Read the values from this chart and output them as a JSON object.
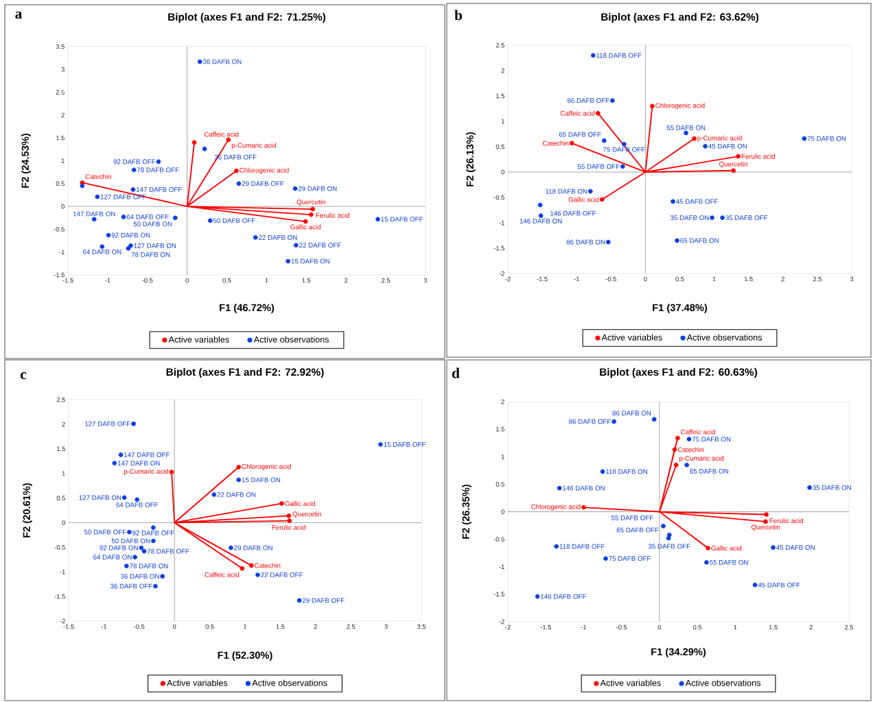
{
  "chart_data": [
    {
      "type": "scatter",
      "title": "Biplot (axes F1 and F2: 71.25%)",
      "xlabel": "F1 (46.72%)",
      "ylabel": "F2 (24.53%)",
      "xlim": [
        -1.5,
        3
      ],
      "ylim": [
        -1.5,
        3.5
      ],
      "xticks": [
        -1.5,
        -1,
        -0.5,
        0,
        0.5,
        1,
        1.5,
        2,
        2.5,
        3
      ],
      "yticks": [
        -1.5,
        -1,
        -0.5,
        0,
        0.5,
        1,
        1.5,
        2,
        2.5,
        3,
        3.5
      ],
      "legend": "bottom",
      "marker": "circle",
      "series": [
        {
          "type": "line",
          "marker": "none",
          "color": "#ff0000",
          "x": [
            0,
            -1.32,
            null,
            0,
            0.09,
            null,
            0,
            0.52,
            null,
            0,
            0.62,
            null,
            0,
            1.58,
            null,
            0,
            1.56,
            null,
            0,
            1.49
          ],
          "values": [
            0,
            0.52,
            null,
            0,
            1.4,
            null,
            0,
            1.46,
            null,
            0,
            0.78,
            null,
            0,
            -0.06,
            null,
            0,
            -0.18,
            null,
            0,
            -0.33
          ]
        },
        {
          "name": "Active variables",
          "color": "#ff0000",
          "x": [
            -1.32,
            0.09,
            0.52,
            0.62,
            1.58,
            1.56,
            1.49
          ],
          "values": [
            0.52,
            1.4,
            1.46,
            0.78,
            -0.06,
            -0.18,
            -0.33
          ]
        },
        {
          "name": "Active observations",
          "color": "#0b3fe0",
          "x": [
            0.16,
            0.22,
            -0.36,
            -0.67,
            -0.68,
            -1.32,
            -1.13,
            -0.8,
            -0.15,
            -1.17,
            -0.99,
            -1.07,
            -0.74,
            -0.71,
            0.29,
            0.65,
            1.36,
            0.86,
            1.37,
            1.27,
            2.4
          ],
          "values": [
            3.17,
            1.26,
            0.98,
            0.8,
            0.37,
            0.45,
            0.21,
            -0.23,
            -0.25,
            -0.28,
            -0.63,
            -0.88,
            -0.92,
            -0.86,
            -0.31,
            0.5,
            0.39,
            -0.68,
            -0.85,
            -1.2,
            -0.28
          ]
        }
      ],
      "annotations": [
        "a",
        {
          "text": "Catechin",
          "x": -1.32,
          "y": 0.52
        },
        {
          "text": "Caffeic acid",
          "x": 0.09,
          "y": 1.4
        },
        {
          "text": "p-Cumaric acid",
          "x": 0.52,
          "y": 1.46
        },
        {
          "text": "Chlorogenic acid",
          "x": 0.62,
          "y": 0.78
        },
        {
          "text": "Ferulic acid",
          "x": 1.58,
          "y": -0.06
        },
        {
          "text": "Quercetin",
          "x": 1.56,
          "y": -0.18
        },
        {
          "text": "Gallic acid",
          "x": 1.49,
          "y": -0.33
        },
        {
          "text": "36 DAFB ON",
          "x": 0.16,
          "y": 3.17
        },
        {
          "text": "36 DAFB OFF",
          "x": 0.22,
          "y": 1.26
        },
        {
          "text": "92 DAFB OFF",
          "x": -0.36,
          "y": 0.98
        },
        {
          "text": "78 DAFB OFF",
          "x": -0.67,
          "y": 0.8
        },
        {
          "text": "147 DAFB OFF",
          "x": -0.68,
          "y": 0.37
        },
        {
          "text": "127 DAFB OFF",
          "x": -1.13,
          "y": 0.21
        },
        {
          "text": "64 DAFB OFF",
          "x": -0.8,
          "y": -0.23
        },
        {
          "text": "50 DAFB ON",
          "x": -0.15,
          "y": -0.25
        },
        {
          "text": "147 DAFB ON",
          "x": -1.17,
          "y": -0.28
        },
        {
          "text": "92 DAFB ON",
          "x": -0.99,
          "y": -0.63
        },
        {
          "text": "64 DAFB ON",
          "x": -1.07,
          "y": -0.88
        },
        {
          "text": "78 DAFB ON",
          "x": -0.74,
          "y": -0.92
        },
        {
          "text": "127 DAFB ON",
          "x": -0.71,
          "y": -0.86
        },
        {
          "text": "50 DAFB OFF",
          "x": 0.29,
          "y": -0.31
        },
        {
          "text": "29 DAFB OFF",
          "x": 0.65,
          "y": 0.5
        },
        {
          "text": "29 DAFB ON",
          "x": 1.36,
          "y": 0.39
        },
        {
          "text": "22 DAFB ON",
          "x": 0.86,
          "y": -0.68
        },
        {
          "text": "22 DAFB OFF",
          "x": 1.37,
          "y": -0.85
        },
        {
          "text": "15 DAFB ON",
          "x": 1.27,
          "y": -1.2
        },
        {
          "text": "15 DAFB OFF",
          "x": 2.4,
          "y": -0.28
        }
      ]
    },
    {
      "type": "scatter",
      "title": "Biplot (axes F1 and F2: 63.62%)",
      "xlabel": "F1 (37.48%)",
      "ylabel": "F2 (26.13%)",
      "xlim": [
        -2,
        3
      ],
      "ylim": [
        -2,
        2.5
      ],
      "xticks": [
        -2,
        -1.5,
        -1,
        -0.5,
        0,
        0.5,
        1,
        1.5,
        2,
        2.5,
        3
      ],
      "yticks": [
        -2,
        -1.5,
        -1,
        -0.5,
        0,
        0.5,
        1,
        1.5,
        2,
        2.5
      ],
      "legend": "bottom",
      "marker": "circle",
      "series": [
        {
          "type": "line",
          "marker": "none",
          "color": "#ff0000",
          "x": [
            0,
            0.1,
            null,
            0,
            -0.69,
            null,
            0,
            -1.07,
            null,
            0,
            0.71,
            null,
            0,
            1.35,
            null,
            0,
            1.28,
            null,
            0,
            -0.63
          ],
          "values": [
            0,
            1.3,
            null,
            0,
            1.16,
            null,
            0,
            0.57,
            null,
            0,
            0.66,
            null,
            0,
            0.31,
            null,
            0,
            0.03,
            null,
            0,
            -0.54
          ]
        },
        {
          "name": "Active variables",
          "color": "#ff0000",
          "x": [
            0.1,
            -0.69,
            -1.07,
            0.71,
            1.35,
            1.28,
            -0.63
          ],
          "values": [
            1.3,
            1.16,
            0.57,
            0.66,
            0.31,
            0.03,
            -0.54
          ]
        },
        {
          "name": "Active observations",
          "color": "#0b3fe0",
          "x": [
            -0.76,
            -0.48,
            -0.6,
            -0.31,
            -0.33,
            0.59,
            0.87,
            2.31,
            -0.8,
            -1.53,
            -1.52,
            -0.54,
            0.4,
            0.97,
            1.12,
            0.46
          ],
          "values": [
            2.3,
            1.41,
            0.62,
            0.55,
            0.11,
            0.77,
            0.51,
            0.66,
            -0.38,
            -0.65,
            -0.86,
            -1.38,
            -0.58,
            -0.9,
            -0.9,
            -1.35
          ]
        }
      ],
      "annotations": [
        "b",
        {
          "text": "Chlorogenic acid",
          "x": 0.1,
          "y": 1.3
        },
        {
          "text": "Caffeic acid",
          "x": -0.69,
          "y": 1.16
        },
        {
          "text": "Catechin",
          "x": -1.07,
          "y": 0.57
        },
        {
          "text": "p-Cumaric acid",
          "x": 0.71,
          "y": 0.66
        },
        {
          "text": "Ferulic acid",
          "x": 1.35,
          "y": 0.31
        },
        {
          "text": "Quercetin",
          "x": 1.28,
          "y": 0.03
        },
        {
          "text": "Gallic acid",
          "x": -0.63,
          "y": -0.54
        },
        {
          "text": "118 DAFB OFF",
          "x": -0.76,
          "y": 2.3
        },
        {
          "text": "86 DAFB OFF",
          "x": -0.48,
          "y": 1.41
        },
        {
          "text": "65 DAFB OFF",
          "x": -0.6,
          "y": 0.62
        },
        {
          "text": "75 DAFB OFF",
          "x": -0.31,
          "y": 0.55
        },
        {
          "text": "55 DAFB OFF",
          "x": -0.33,
          "y": 0.11
        },
        {
          "text": "55 DAFB ON",
          "x": 0.59,
          "y": 0.77
        },
        {
          "text": "45 DAFB ON",
          "x": 0.87,
          "y": 0.51
        },
        {
          "text": "75 DAFB ON",
          "x": 2.31,
          "y": 0.66
        },
        {
          "text": "118 DAFB ON",
          "x": -0.8,
          "y": -0.38
        },
        {
          "text": "146 DAFB OFF",
          "x": -1.53,
          "y": -0.65
        },
        {
          "text": "146 DAFB ON",
          "x": -1.52,
          "y": -0.86
        },
        {
          "text": "86 DAFB ON",
          "x": -0.54,
          "y": -1.38
        },
        {
          "text": "45 DAFB OFF",
          "x": 0.4,
          "y": -0.58
        },
        {
          "text": "35 DAFB ON",
          "x": 0.97,
          "y": -0.9
        },
        {
          "text": "35 DAFB OFF",
          "x": 1.12,
          "y": -0.9
        },
        {
          "text": "65 DAFB ON",
          "x": 0.46,
          "y": -1.35
        }
      ]
    },
    {
      "type": "scatter",
      "title": "Biplot (axes F1 and F2: 72.92%)",
      "xlabel": "F1 (52.30%)",
      "ylabel": "F2 (20.61%)",
      "xlim": [
        -1.5,
        3.5
      ],
      "ylim": [
        -2,
        2.5
      ],
      "xticks": [
        -1.5,
        -1,
        -0.5,
        0,
        0.5,
        1,
        1.5,
        2,
        2.5,
        3,
        3.5
      ],
      "yticks": [
        -2,
        -1.5,
        -1,
        -0.5,
        0,
        0.5,
        1,
        1.5,
        2,
        2.5
      ],
      "legend": "bottom",
      "marker": "circle",
      "series": [
        {
          "type": "line",
          "marker": "none",
          "color": "#ff0000",
          "x": [
            0,
            -0.04,
            null,
            0,
            0.91,
            null,
            0,
            1.52,
            null,
            0,
            1.62,
            null,
            0,
            1.63,
            null,
            0,
            1.09,
            null,
            0,
            0.96
          ],
          "values": [
            0,
            1.03,
            null,
            0,
            1.13,
            null,
            0,
            0.39,
            null,
            0,
            0.14,
            null,
            0,
            0.04,
            null,
            0,
            -0.87,
            null,
            0,
            -0.93
          ]
        },
        {
          "name": "Active variables",
          "color": "#ff0000",
          "x": [
            -0.04,
            0.91,
            1.52,
            1.62,
            1.63,
            1.09,
            0.96
          ],
          "values": [
            1.03,
            1.13,
            0.39,
            0.14,
            0.04,
            -0.87,
            -0.93
          ]
        },
        {
          "name": "Active observations",
          "color": "#0b3fe0",
          "x": [
            -0.58,
            -0.76,
            -0.85,
            -0.71,
            -0.53,
            0.91,
            0.56,
            2.92,
            0.8,
            1.18,
            1.77,
            -0.64,
            -0.3,
            -0.3,
            -0.47,
            -0.43,
            -0.56,
            -0.68,
            -0.17,
            -0.27
          ],
          "values": [
            2.01,
            1.38,
            1.21,
            0.51,
            0.47,
            0.87,
            0.57,
            1.59,
            -0.51,
            -1.06,
            -1.58,
            -0.19,
            -0.1,
            -0.37,
            -0.51,
            -0.58,
            -0.7,
            -0.88,
            -1.09,
            -1.29
          ]
        }
      ],
      "annotations": [
        "c",
        {
          "text": "p-Cumaric acid",
          "x": -0.04,
          "y": 1.03
        },
        {
          "text": "Chlorogenic acid",
          "x": 0.91,
          "y": 1.13
        },
        {
          "text": "Gallic acid",
          "x": 1.52,
          "y": 0.39
        },
        {
          "text": "Ferulic acid",
          "x": 1.62,
          "y": 0.14
        },
        {
          "text": "Quercetin",
          "x": 1.63,
          "y": 0.04
        },
        {
          "text": "Catechin",
          "x": 1.09,
          "y": -0.87
        },
        {
          "text": "Caffeic acid",
          "x": 0.96,
          "y": -0.93
        },
        {
          "text": "127 DAFB OFF",
          "x": -0.58,
          "y": 2.01
        },
        {
          "text": "147 DAFB OFF",
          "x": -0.76,
          "y": 1.38
        },
        {
          "text": "147 DAFB ON",
          "x": -0.85,
          "y": 1.21
        },
        {
          "text": "127 DAFB ON",
          "x": -0.71,
          "y": 0.51
        },
        {
          "text": "64 DAFB OFF",
          "x": -0.53,
          "y": 0.47
        },
        {
          "text": "15 DAFB ON",
          "x": 0.91,
          "y": 0.87
        },
        {
          "text": "22 DAFB ON",
          "x": 0.56,
          "y": 0.57
        },
        {
          "text": "15 DAFB OFF",
          "x": 2.92,
          "y": 1.59
        },
        {
          "text": "29 DAFB ON",
          "x": 0.8,
          "y": -0.51
        },
        {
          "text": "22 DAFB OFF",
          "x": 1.18,
          "y": -1.06
        },
        {
          "text": "29 DAFB OFF",
          "x": 1.77,
          "y": -1.58
        },
        {
          "text": "50 DAFB OFF",
          "x": -0.64,
          "y": -0.19
        },
        {
          "text": "92 DAFB OFF",
          "x": -0.3,
          "y": -0.1
        },
        {
          "text": "50 DAFB ON",
          "x": -0.3,
          "y": -0.37
        },
        {
          "text": "92 DAFB ON",
          "x": -0.47,
          "y": -0.51
        },
        {
          "text": "78 DAFB OFF",
          "x": -0.43,
          "y": -0.58
        },
        {
          "text": "64 DAFB ON",
          "x": -0.56,
          "y": -0.7
        },
        {
          "text": "78 DAFB ON",
          "x": -0.68,
          "y": -0.88
        },
        {
          "text": "36 DAFB ON",
          "x": -0.17,
          "y": -1.09
        },
        {
          "text": "36 DAFB OFF",
          "x": -0.27,
          "y": -1.29
        }
      ]
    },
    {
      "type": "scatter",
      "title": "Biplot (axes F1 and F2: 60.63%)",
      "xlabel": "F1 (34.29%)",
      "ylabel": "F2 (26.35%)",
      "xlim": [
        -2,
        2.5
      ],
      "ylim": [
        -2,
        2
      ],
      "xticks": [
        -2,
        -1.5,
        -1,
        -0.5,
        0,
        0.5,
        1,
        1.5,
        2,
        2.5
      ],
      "yticks": [
        -2,
        -1.5,
        -1,
        -0.5,
        0,
        0.5,
        1,
        1.5,
        2
      ],
      "legend": "bottom",
      "marker": "circle",
      "series": [
        {
          "type": "line",
          "marker": "none",
          "color": "#ff0000",
          "x": [
            0,
            0.24,
            null,
            0,
            0.2,
            null,
            0,
            0.22,
            null,
            0,
            -1.0,
            null,
            0,
            1.41,
            null,
            0,
            1.4,
            null,
            0,
            0.64
          ],
          "values": [
            0,
            1.34,
            null,
            0,
            1.13,
            null,
            0,
            0.85,
            null,
            0,
            0.08,
            null,
            0,
            -0.05,
            null,
            0,
            -0.18,
            null,
            0,
            -0.66
          ]
        },
        {
          "name": "Active variables",
          "color": "#ff0000",
          "x": [
            0.24,
            0.2,
            0.22,
            -1.0,
            1.41,
            1.4,
            0.64
          ],
          "values": [
            1.34,
            1.13,
            0.85,
            0.08,
            -0.05,
            -0.18,
            -0.66
          ]
        },
        {
          "name": "Active observations",
          "color": "#0b3fe0",
          "x": [
            -0.07,
            -0.6,
            0.39,
            0.36,
            -0.75,
            -1.32,
            1.98,
            0.05,
            0.13,
            0.12,
            1.5,
            0.62,
            1.26,
            -1.36,
            -0.71,
            -1.61
          ],
          "values": [
            1.68,
            1.64,
            1.32,
            0.85,
            0.73,
            0.43,
            0.44,
            -0.26,
            -0.42,
            -0.48,
            -0.65,
            -0.92,
            -1.33,
            -0.63,
            -0.85,
            -1.54
          ]
        }
      ],
      "annotations": [
        "d",
        {
          "text": "Caffeic acid",
          "x": 0.24,
          "y": 1.34
        },
        {
          "text": "Catechin",
          "x": 0.2,
          "y": 1.13
        },
        {
          "text": "p-Cumaric acid",
          "x": 0.22,
          "y": 0.85
        },
        {
          "text": "Chlorogenic acid",
          "x": -1.0,
          "y": 0.08
        },
        {
          "text": "Ferulic acid",
          "x": 1.41,
          "y": -0.05
        },
        {
          "text": "Quercetin",
          "x": 1.4,
          "y": -0.18
        },
        {
          "text": "Gallic acid",
          "x": 0.64,
          "y": -0.66
        },
        {
          "text": "86 DAFB ON",
          "x": -0.07,
          "y": 1.68
        },
        {
          "text": "86 DAFB OFF",
          "x": -0.6,
          "y": 1.64
        },
        {
          "text": "75 DAFB ON",
          "x": 0.39,
          "y": 1.32
        },
        {
          "text": "65 DAFB ON",
          "x": 0.36,
          "y": 0.85
        },
        {
          "text": "118 DAFB ON",
          "x": -0.75,
          "y": 0.73
        },
        {
          "text": "146 DAFB ON",
          "x": -1.32,
          "y": 0.43
        },
        {
          "text": "35 DAFB ON",
          "x": 1.98,
          "y": 0.44
        },
        {
          "text": "55 DAFB OFF",
          "x": 0.05,
          "y": -0.26
        },
        {
          "text": "35 DAFB OFF",
          "x": 0.13,
          "y": -0.42
        },
        {
          "text": "65 DAFB OFF",
          "x": 0.12,
          "y": -0.48
        },
        {
          "text": "45 DAFB ON",
          "x": 1.5,
          "y": -0.65
        },
        {
          "text": "55 DAFB ON",
          "x": 0.62,
          "y": -0.92
        },
        {
          "text": "45 DAFB OFF",
          "x": 1.26,
          "y": -1.33
        },
        {
          "text": "118 DAFB OFF",
          "x": -1.36,
          "y": -0.63
        },
        {
          "text": "75 DAFB OFF",
          "x": -0.71,
          "y": -0.85
        },
        {
          "text": "146 DAFB OFF",
          "x": -1.61,
          "y": -1.54
        }
      ]
    }
  ]
}
